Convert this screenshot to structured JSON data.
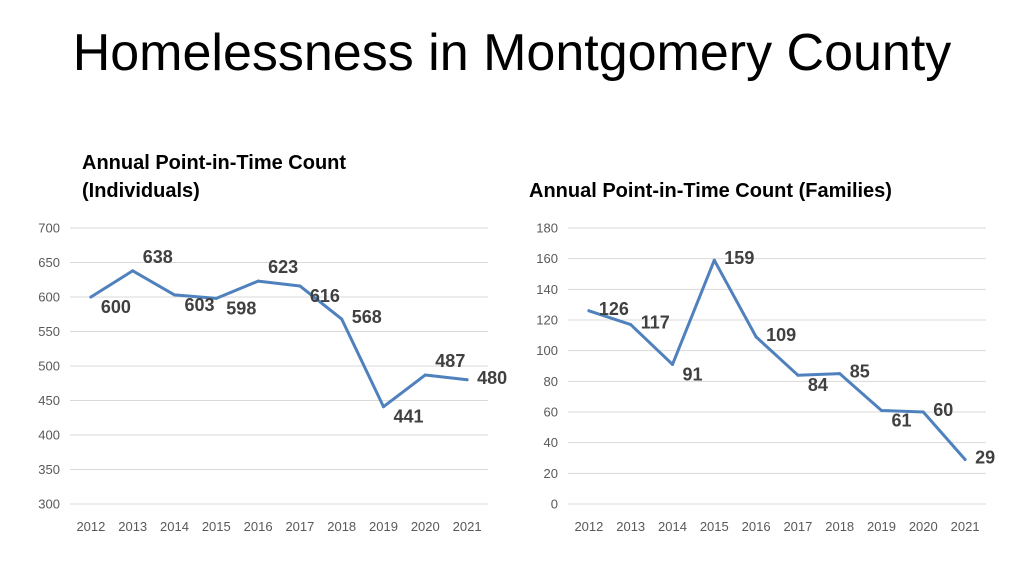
{
  "slide": {
    "title": "Homelessness in Montgomery County"
  },
  "chart_data": [
    {
      "type": "line",
      "title": "Annual Point-in-Time Count (Individuals)",
      "xlabel": "",
      "ylabel": "",
      "x": [
        "2012",
        "2013",
        "2014",
        "2015",
        "2016",
        "2017",
        "2018",
        "2019",
        "2020",
        "2021"
      ],
      "series": [
        {
          "values": [
            600,
            638,
            603,
            598,
            623,
            616,
            568,
            441,
            487,
            480
          ],
          "color": "#4f81bd"
        }
      ],
      "ylim": [
        300,
        700
      ],
      "yticks": [
        300,
        350,
        400,
        450,
        500,
        550,
        600,
        650,
        700
      ],
      "grid": true,
      "legend": "none"
    },
    {
      "type": "line",
      "title": "Annual Point-in-Time Count (Families)",
      "xlabel": "",
      "ylabel": "",
      "x": [
        "2012",
        "2013",
        "2014",
        "2015",
        "2016",
        "2017",
        "2018",
        "2019",
        "2020",
        "2021"
      ],
      "series": [
        {
          "values": [
            126,
            117,
            91,
            159,
            109,
            84,
            85,
            61,
            60,
            29
          ],
          "color": "#4f81bd"
        }
      ],
      "ylim": [
        0,
        180
      ],
      "yticks": [
        0,
        20,
        40,
        60,
        80,
        100,
        120,
        140,
        160,
        180
      ],
      "grid": true,
      "legend": "none"
    }
  ]
}
